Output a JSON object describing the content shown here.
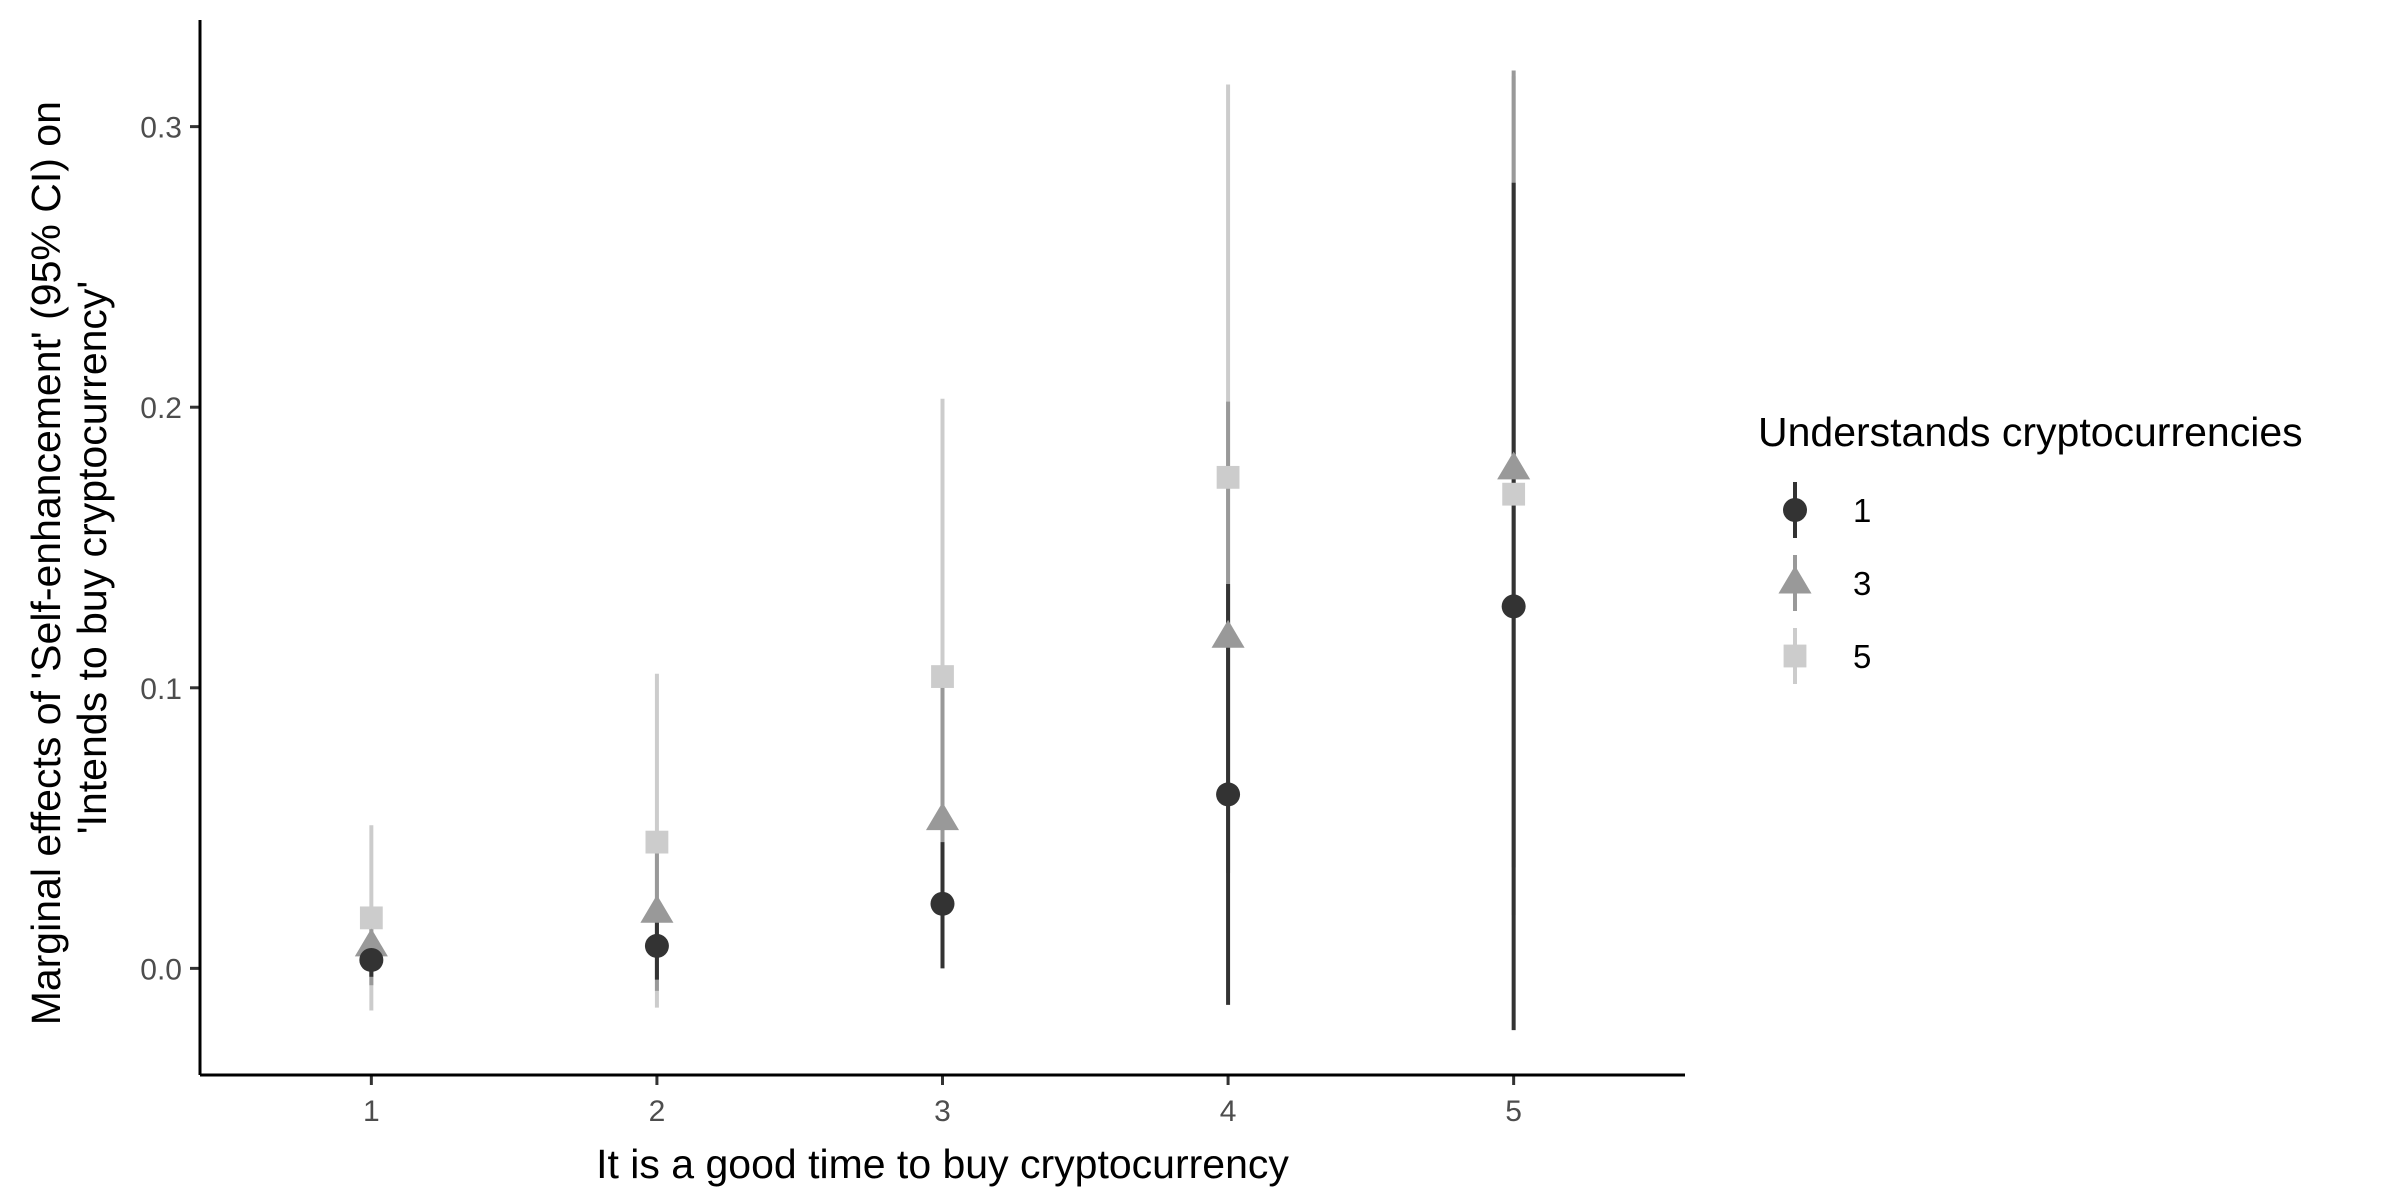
{
  "chart_data": {
    "type": "scatter",
    "xlabel": "It is a good time to buy cryptocurrency",
    "ylabel_line1": "Marginal effects of 'Self-enhancement' (95% CI) on",
    "ylabel_line2": "'Intends to buy cryptocurrency'",
    "x_ticks": [
      "1",
      "2",
      "3",
      "4",
      "5"
    ],
    "y_ticks": [
      "0.0",
      "0.1",
      "0.2",
      "0.3"
    ],
    "xlim": [
      0.4,
      5.6
    ],
    "ylim": [
      -0.038,
      0.338
    ],
    "legend_title": "Understands cryptocurrencies",
    "legend_position": "right",
    "series": [
      {
        "name": "1",
        "shape": "circle",
        "color": "#333333",
        "points": [
          {
            "x": 1,
            "y": 0.003,
            "lo": -0.003,
            "hi": 0.009
          },
          {
            "x": 2,
            "y": 0.008,
            "lo": -0.004,
            "hi": 0.02
          },
          {
            "x": 3,
            "y": 0.023,
            "lo": 0.0,
            "hi": 0.045
          },
          {
            "x": 4,
            "y": 0.062,
            "lo": -0.013,
            "hi": 0.137
          },
          {
            "x": 5,
            "y": 0.129,
            "lo": -0.022,
            "hi": 0.28
          }
        ]
      },
      {
        "name": "3",
        "shape": "triangle",
        "color": "#999999",
        "points": [
          {
            "x": 1,
            "y": 0.008,
            "lo": -0.006,
            "hi": 0.022
          },
          {
            "x": 2,
            "y": 0.02,
            "lo": -0.008,
            "hi": 0.048
          },
          {
            "x": 3,
            "y": 0.053,
            "lo": 0.005,
            "hi": 0.101
          },
          {
            "x": 4,
            "y": 0.118,
            "lo": 0.034,
            "hi": 0.202
          },
          {
            "x": 5,
            "y": 0.178,
            "lo": 0.036,
            "hi": 0.32
          }
        ]
      },
      {
        "name": "5",
        "shape": "square",
        "color": "#cccccc",
        "points": [
          {
            "x": 1,
            "y": 0.018,
            "lo": -0.015,
            "hi": 0.051
          },
          {
            "x": 2,
            "y": 0.045,
            "lo": -0.014,
            "hi": 0.105
          },
          {
            "x": 3,
            "y": 0.104,
            "lo": 0.006,
            "hi": 0.203
          },
          {
            "x": 4,
            "y": 0.175,
            "lo": 0.035,
            "hi": 0.315
          },
          {
            "x": 5,
            "y": 0.169,
            "lo": 0.019,
            "hi": 0.318
          }
        ]
      }
    ]
  }
}
